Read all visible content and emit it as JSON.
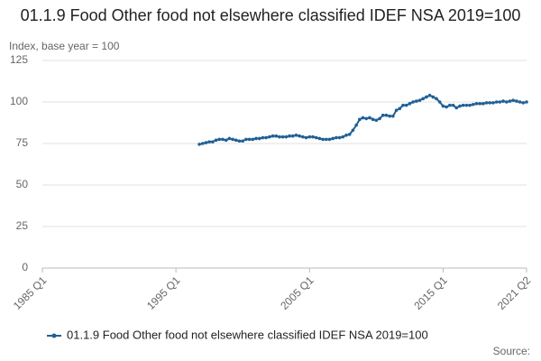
{
  "chart_data": {
    "type": "line",
    "title": "01.1.9 Food Other food not elsewhere classified IDEF NSA 2019=100",
    "y_label": "Index, base year = 100",
    "source": "Source:",
    "xlim": [
      "1985 Q1",
      "2021 Q2"
    ],
    "xticks": [
      "1985 Q1",
      "1995 Q1",
      "2005 Q1",
      "2015 Q1",
      "2021 Q2"
    ],
    "ylim": [
      0,
      125
    ],
    "yticks": [
      0,
      25,
      50,
      75,
      100,
      125
    ],
    "grid": true,
    "x": [
      "1996 Q4",
      "1997 Q1",
      "1997 Q2",
      "1997 Q3",
      "1997 Q4",
      "1998 Q1",
      "1998 Q2",
      "1998 Q3",
      "1998 Q4",
      "1999 Q1",
      "1999 Q2",
      "1999 Q3",
      "1999 Q4",
      "2000 Q1",
      "2000 Q2",
      "2000 Q3",
      "2000 Q4",
      "2001 Q1",
      "2001 Q2",
      "2001 Q3",
      "2001 Q4",
      "2002 Q1",
      "2002 Q2",
      "2002 Q3",
      "2002 Q4",
      "2003 Q1",
      "2003 Q2",
      "2003 Q3",
      "2003 Q4",
      "2004 Q1",
      "2004 Q2",
      "2004 Q3",
      "2004 Q4",
      "2005 Q1",
      "2005 Q2",
      "2005 Q3",
      "2005 Q4",
      "2006 Q1",
      "2006 Q2",
      "2006 Q3",
      "2006 Q4",
      "2007 Q1",
      "2007 Q2",
      "2007 Q3",
      "2007 Q4",
      "2008 Q1",
      "2008 Q2",
      "2008 Q3",
      "2008 Q4",
      "2009 Q1",
      "2009 Q2",
      "2009 Q3",
      "2009 Q4",
      "2010 Q1",
      "2010 Q2",
      "2010 Q3",
      "2010 Q4",
      "2011 Q1",
      "2011 Q2",
      "2011 Q3",
      "2011 Q4",
      "2012 Q1",
      "2012 Q2",
      "2012 Q3",
      "2012 Q4",
      "2013 Q1",
      "2013 Q2",
      "2013 Q3",
      "2013 Q4",
      "2014 Q1",
      "2014 Q2",
      "2014 Q3",
      "2014 Q4",
      "2015 Q1",
      "2015 Q2",
      "2015 Q3",
      "2015 Q4",
      "2016 Q1",
      "2016 Q2",
      "2016 Q3",
      "2016 Q4",
      "2017 Q1",
      "2017 Q2",
      "2017 Q3",
      "2017 Q4",
      "2018 Q1",
      "2018 Q2",
      "2018 Q3",
      "2018 Q4",
      "2019 Q1",
      "2019 Q2",
      "2019 Q3",
      "2019 Q4",
      "2020 Q1",
      "2020 Q2",
      "2020 Q3",
      "2020 Q4",
      "2021 Q1",
      "2021 Q2"
    ],
    "series": [
      {
        "name": "01.1.9 Food Other food not elsewhere classified IDEF NSA 2019=100",
        "color": "#206095",
        "values": [
          74.5,
          75,
          75.5,
          76,
          76,
          77,
          77.5,
          77.5,
          77,
          78,
          77.5,
          77,
          76.5,
          76.5,
          77.5,
          77.5,
          77.5,
          78,
          78,
          78.5,
          78.5,
          79,
          79.5,
          79.5,
          79,
          79,
          79,
          79.5,
          79.5,
          80,
          79.5,
          79,
          78.5,
          79,
          79,
          78.5,
          78,
          77.5,
          77.5,
          77.5,
          78,
          78.5,
          78.5,
          79,
          80,
          80.5,
          83,
          86,
          89.5,
          90.5,
          90,
          90.5,
          89.5,
          89,
          90,
          92,
          92,
          91.5,
          91.5,
          95,
          96,
          98,
          98,
          99,
          100,
          100.5,
          101,
          102,
          103,
          104,
          103,
          102,
          100,
          97.5,
          97,
          98,
          98,
          96.5,
          97.5,
          98,
          98,
          98,
          98.5,
          99,
          99,
          99,
          99.5,
          99.5,
          99.5,
          100,
          100,
          100.5,
          100,
          100.5,
          101,
          100.5,
          100,
          99.5,
          100
        ]
      }
    ]
  }
}
